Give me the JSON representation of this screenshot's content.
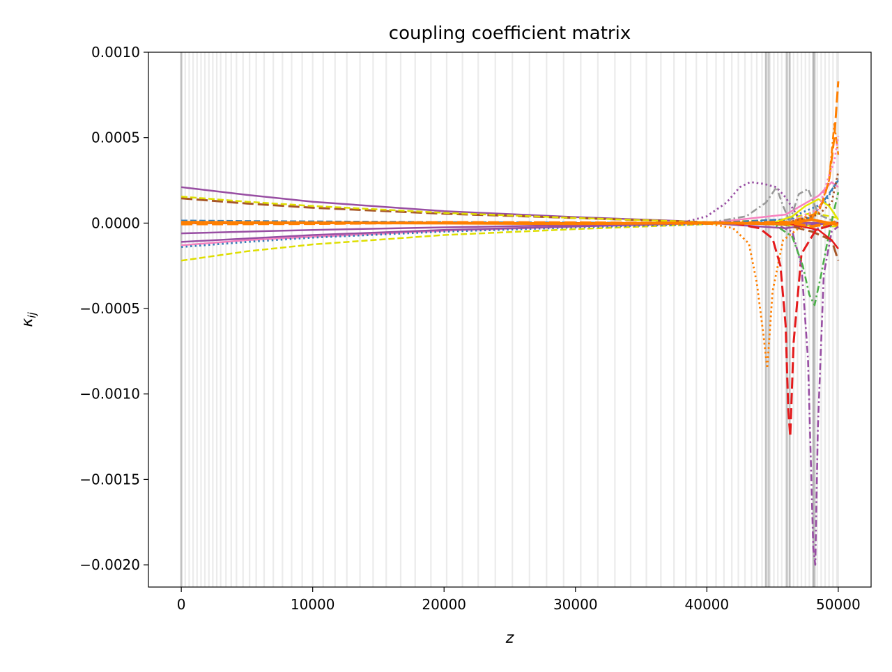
{
  "chart_data": {
    "type": "line",
    "title": "coupling coefficient matrix",
    "xlabel": "z",
    "ylabel_main": "κ",
    "ylabel_sub": "ij",
    "xlim": [
      -2500,
      52500
    ],
    "ylim": [
      -0.00213,
      0.001
    ],
    "xticks": [
      0,
      10000,
      20000,
      30000,
      40000,
      50000
    ],
    "xtick_labels": [
      "0",
      "10000",
      "20000",
      "30000",
      "40000",
      "50000"
    ],
    "yticks": [
      0.001,
      0.0005,
      0.0,
      -0.0005,
      -0.001,
      -0.0015,
      -0.002
    ],
    "ytick_labels": [
      "0.0010",
      "0.0005",
      "0.0000",
      "−0.0005",
      "−0.0010",
      "−0.0015",
      "−0.0020"
    ],
    "grid": false,
    "legend": "none",
    "shaded_positions_z": [
      0,
      300,
      600,
      900,
      1200,
      1500,
      1800,
      2100,
      2400,
      2700,
      3000,
      3400,
      3800,
      4200,
      4700,
      5200,
      5700,
      6300,
      7000,
      7700,
      8400,
      9200,
      10000,
      10800,
      11700,
      12600,
      13600,
      14600,
      15600,
      16700,
      17800,
      19000,
      20200,
      21400,
      22600,
      23900,
      25200,
      26500,
      27800,
      29100,
      30400,
      31700,
      33000,
      34200,
      35400,
      36500,
      37500,
      38400,
      39200,
      40000,
      40700,
      41300,
      41900,
      42400,
      42900,
      43400,
      43800,
      44200,
      44500,
      44800,
      45100,
      45400,
      45700,
      46000,
      46300,
      46600,
      46900,
      47200,
      47500,
      47800,
      48100,
      48400,
      48700,
      49000,
      49300,
      49600,
      49900,
      50000
    ],
    "dark_positions_z": [
      0,
      44500,
      44700,
      46100,
      46300,
      48100,
      48200
    ],
    "series": [
      {
        "color": "#984ea3",
        "dash": "solid",
        "values": [
          [
            0,
            0.00021
          ],
          [
            5000,
            0.000165
          ],
          [
            10000,
            0.000125
          ],
          [
            20000,
            7e-05
          ],
          [
            30000,
            3.5e-05
          ],
          [
            38000,
            1.2e-05
          ],
          [
            40000,
            2e-06
          ],
          [
            42000,
            -1e-05
          ],
          [
            44000,
            -2e-05
          ],
          [
            46000,
            -3e-05
          ],
          [
            48000,
            -1e-05
          ],
          [
            50000,
            0.0
          ]
        ]
      },
      {
        "color": "#a65628",
        "dash": "dashed-long",
        "values": [
          [
            0,
            0.000145
          ],
          [
            5000,
            0.000115
          ],
          [
            10000,
            9e-05
          ],
          [
            20000,
            5.5e-05
          ],
          [
            30000,
            3e-05
          ],
          [
            38000,
            1e-05
          ],
          [
            42000,
            0.0
          ],
          [
            46000,
            -1e-05
          ],
          [
            48000,
            -5e-05
          ],
          [
            49500,
            -0.0001
          ],
          [
            50000,
            -0.00022
          ]
        ]
      },
      {
        "color": "#dede00",
        "dash": "dashed",
        "values": [
          [
            0,
            0.000155
          ],
          [
            5000,
            0.000125
          ],
          [
            10000,
            0.0001
          ],
          [
            20000,
            6e-05
          ],
          [
            30000,
            3e-05
          ],
          [
            40000,
            5e-06
          ],
          [
            46000,
            2e-05
          ],
          [
            48000,
            6e-05
          ],
          [
            50000,
            3e-05
          ]
        ]
      },
      {
        "color": "#dede00",
        "dash": "dashed",
        "values": [
          [
            0,
            -0.00022
          ],
          [
            5000,
            -0.000165
          ],
          [
            10000,
            -0.000125
          ],
          [
            20000,
            -7e-05
          ],
          [
            30000,
            -3.5e-05
          ],
          [
            38000,
            -1.2e-05
          ],
          [
            42000,
            0.0
          ],
          [
            46000,
            -1e-05
          ],
          [
            50000,
            -2e-05
          ]
        ]
      },
      {
        "color": "#f781bf",
        "dash": "solid",
        "values": [
          [
            0,
            -0.00013
          ],
          [
            5000,
            -0.0001
          ],
          [
            10000,
            -8e-05
          ],
          [
            20000,
            -4.5e-05
          ],
          [
            30000,
            -2e-05
          ],
          [
            40000,
            0.0
          ],
          [
            46000,
            5e-05
          ],
          [
            48500,
            0.00016
          ],
          [
            49500,
            0.00024
          ],
          [
            50000,
            0.00021
          ]
        ]
      },
      {
        "color": "#377eb8",
        "dash": "dotted",
        "values": [
          [
            0,
            -0.00014
          ],
          [
            5000,
            -0.00011
          ],
          [
            10000,
            -8.5e-05
          ],
          [
            20000,
            -5e-05
          ],
          [
            30000,
            -2.5e-05
          ],
          [
            40000,
            -5e-06
          ],
          [
            46000,
            2e-05
          ],
          [
            49000,
            0.00012
          ],
          [
            50000,
            0.00026
          ]
        ]
      },
      {
        "color": "#984ea3",
        "dash": "solid",
        "values": [
          [
            0,
            -0.00011
          ],
          [
            5000,
            -9e-05
          ],
          [
            10000,
            -7e-05
          ],
          [
            20000,
            -4e-05
          ],
          [
            30000,
            -2e-05
          ],
          [
            40000,
            0.0
          ],
          [
            50000,
            0.0
          ]
        ]
      },
      {
        "color": "#984ea3",
        "dash": "solid",
        "values": [
          [
            0,
            -6e-05
          ],
          [
            5000,
            -5e-05
          ],
          [
            10000,
            -4e-05
          ],
          [
            20000,
            -2.5e-05
          ],
          [
            30000,
            -1.2e-05
          ],
          [
            40000,
            0.0
          ],
          [
            50000,
            0.0
          ]
        ]
      },
      {
        "color": "#377eb8",
        "dash": "dashed",
        "values": [
          [
            0,
            1.5e-05
          ],
          [
            5000,
            1.2e-05
          ],
          [
            10000,
            1e-05
          ],
          [
            20000,
            6e-06
          ],
          [
            30000,
            3e-06
          ],
          [
            40000,
            0.0
          ],
          [
            48000,
            3e-05
          ],
          [
            50000,
            0.00025
          ]
        ]
      },
      {
        "color": "#984ea3",
        "dash": "dotted",
        "values": [
          [
            0,
            0.0
          ],
          [
            38000,
            0.0
          ],
          [
            40000,
            4e-05
          ],
          [
            41500,
            0.00012
          ],
          [
            42500,
            0.00021
          ],
          [
            43300,
            0.00024
          ],
          [
            44300,
            0.00023
          ],
          [
            45300,
            0.00021
          ],
          [
            46000,
            0.00015
          ],
          [
            47000,
            3e-05
          ],
          [
            48000,
            -4e-05
          ],
          [
            50000,
            0.0
          ]
        ]
      },
      {
        "color": "#999999",
        "dash": "dashdot",
        "values": [
          [
            0,
            0.0
          ],
          [
            40000,
            0.0
          ],
          [
            43000,
            4e-05
          ],
          [
            44500,
            0.00012
          ],
          [
            45300,
            0.00021
          ],
          [
            45800,
            0.0001
          ],
          [
            46300,
            1e-05
          ],
          [
            47000,
            0.00017
          ],
          [
            47700,
            0.0002
          ],
          [
            48500,
            5e-05
          ],
          [
            50000,
            0.0
          ]
        ]
      },
      {
        "color": "#ff7f00",
        "dash": "dotted",
        "values": [
          [
            0,
            0.0
          ],
          [
            40000,
            0.0
          ],
          [
            42000,
            -3e-05
          ],
          [
            43200,
            -0.00012
          ],
          [
            43800,
            -0.00035
          ],
          [
            44300,
            -0.00065
          ],
          [
            44600,
            -0.00085
          ],
          [
            45000,
            -0.0004
          ],
          [
            45800,
            -0.0001
          ],
          [
            47000,
            -3e-05
          ],
          [
            50000,
            0.0
          ]
        ]
      },
      {
        "color": "#e41a1c",
        "dash": "dashed-long",
        "values": [
          [
            0,
            0.0
          ],
          [
            42000,
            0.0
          ],
          [
            44000,
            -3e-05
          ],
          [
            45000,
            -9e-05
          ],
          [
            45600,
            -0.00025
          ],
          [
            46000,
            -0.0006
          ],
          [
            46200,
            -0.0011
          ],
          [
            46350,
            -0.00125
          ],
          [
            46600,
            -0.0007
          ],
          [
            47200,
            -0.00018
          ],
          [
            48300,
            -4e-05
          ],
          [
            50000,
            0.0
          ]
        ]
      },
      {
        "color": "#984ea3",
        "dash": "dashdot",
        "values": [
          [
            0,
            0.0
          ],
          [
            45000,
            0.0
          ],
          [
            46500,
            -5e-05
          ],
          [
            47200,
            -0.00025
          ],
          [
            47700,
            -0.0008
          ],
          [
            48100,
            -0.0019
          ],
          [
            48250,
            -0.002
          ],
          [
            48450,
            -0.0012
          ],
          [
            48900,
            -0.0003
          ],
          [
            49500,
            -5e-05
          ],
          [
            50000,
            -2e-05
          ]
        ]
      },
      {
        "color": "#4daf4a",
        "dash": "dashdot",
        "values": [
          [
            0,
            0.0
          ],
          [
            45000,
            0.0
          ],
          [
            46500,
            -8e-05
          ],
          [
            47300,
            -0.00025
          ],
          [
            47800,
            -0.00042
          ],
          [
            48200,
            -0.00048
          ],
          [
            48700,
            -0.0003
          ],
          [
            49200,
            -0.0001
          ],
          [
            49700,
            8e-05
          ],
          [
            50000,
            0.00018
          ]
        ]
      },
      {
        "color": "#e6e600",
        "dash": "solid",
        "values": [
          [
            0,
            0.0
          ],
          [
            45000,
            0.0
          ],
          [
            46500,
            4e-05
          ],
          [
            47500,
            0.0001
          ],
          [
            48500,
            0.00014
          ],
          [
            49300,
            0.0001
          ],
          [
            50000,
            2e-05
          ]
        ]
      },
      {
        "color": "#ff7f00",
        "dash": "dashed-long",
        "values": [
          [
            0,
            0.0
          ],
          [
            46000,
            0.0
          ],
          [
            48000,
            3e-05
          ],
          [
            48800,
            0.00012
          ],
          [
            49300,
            0.00025
          ],
          [
            49700,
            0.0005
          ],
          [
            50000,
            0.00083
          ]
        ]
      },
      {
        "color": "#ff7f00",
        "dash": "dashdot",
        "values": [
          [
            0,
            0.0
          ],
          [
            46000,
            0.0
          ],
          [
            48500,
            6e-05
          ],
          [
            49300,
            0.00025
          ],
          [
            49700,
            0.00058
          ],
          [
            50000,
            0.0004
          ]
        ]
      },
      {
        "color": "#f781bf",
        "dash": "dotted",
        "values": [
          [
            0,
            0.0
          ],
          [
            46000,
            0.0
          ],
          [
            48500,
            8e-05
          ],
          [
            49300,
            0.00028
          ],
          [
            49700,
            0.00036
          ],
          [
            50000,
            0.00051
          ]
        ]
      },
      {
        "color": "#e41a1c",
        "dash": "solid",
        "values": [
          [
            0,
            0.0
          ],
          [
            46000,
            0.0
          ],
          [
            48500,
            -4e-05
          ],
          [
            49500,
            -0.0001
          ],
          [
            50000,
            -0.00015
          ]
        ]
      },
      {
        "color": "#a65628",
        "dash": "dotted",
        "values": [
          [
            0,
            0.0
          ],
          [
            46000,
            0.0
          ],
          [
            48500,
            5e-05
          ],
          [
            49500,
            0.00012
          ],
          [
            50000,
            0.0003
          ]
        ]
      },
      {
        "color": "#ff7f00",
        "dash": "solid-thick",
        "values": [
          [
            0,
            5e-06
          ],
          [
            10000,
            2e-06
          ],
          [
            20000,
            0.0
          ],
          [
            30000,
            -4e-06
          ],
          [
            40000,
            2e-06
          ],
          [
            46000,
            -5e-06
          ],
          [
            48000,
            2e-05
          ],
          [
            50000,
            -1e-05
          ]
        ]
      },
      {
        "color": "#ff7f00",
        "dash": "dashed-thick",
        "values": [
          [
            0,
            -5e-06
          ],
          [
            10000,
            -3e-06
          ],
          [
            20000,
            4e-06
          ],
          [
            30000,
            2e-06
          ],
          [
            40000,
            -2e-06
          ],
          [
            46000,
            6e-06
          ],
          [
            48000,
            -2e-05
          ],
          [
            50000,
            1e-05
          ]
        ]
      }
    ]
  }
}
